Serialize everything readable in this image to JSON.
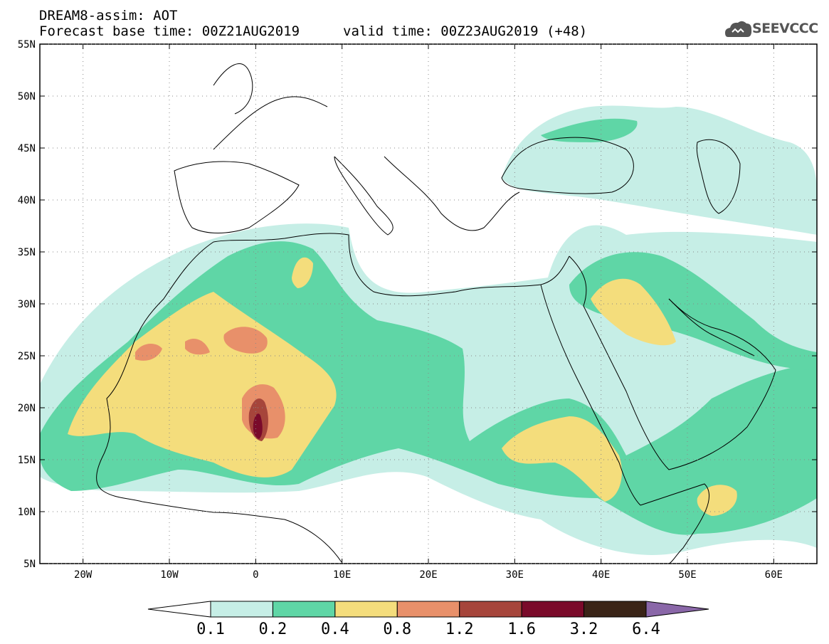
{
  "header": {
    "title_line1": "DREAM8-assim: AOT",
    "title_line2": "Forecast base time: 00Z21AUG2019",
    "valid_time": "valid time: 00Z23AUG2019 (+48)",
    "logo_text": "SEEVCCC"
  },
  "map": {
    "lon_range": [
      -25,
      65
    ],
    "lat_range": [
      5,
      55
    ],
    "lon_ticks": [
      {
        "value": -20,
        "label": "20W"
      },
      {
        "value": -10,
        "label": "10W"
      },
      {
        "value": 0,
        "label": "0"
      },
      {
        "value": 10,
        "label": "10E"
      },
      {
        "value": 20,
        "label": "20E"
      },
      {
        "value": 30,
        "label": "30E"
      },
      {
        "value": 40,
        "label": "40E"
      },
      {
        "value": 50,
        "label": "50E"
      },
      {
        "value": 60,
        "label": "60E"
      }
    ],
    "lat_ticks": [
      {
        "value": 5,
        "label": "5N"
      },
      {
        "value": 10,
        "label": "10N"
      },
      {
        "value": 15,
        "label": "15N"
      },
      {
        "value": 20,
        "label": "20N"
      },
      {
        "value": 25,
        "label": "25N"
      },
      {
        "value": 30,
        "label": "30N"
      },
      {
        "value": 35,
        "label": "35N"
      },
      {
        "value": 40,
        "label": "40N"
      },
      {
        "value": 45,
        "label": "45N"
      },
      {
        "value": 50,
        "label": "50N"
      },
      {
        "value": 55,
        "label": "55N"
      }
    ],
    "grid": "dotted"
  },
  "colorbar": {
    "labels": [
      "0.1",
      "0.2",
      "0.4",
      "0.8",
      "1.2",
      "1.6",
      "3.2",
      "6.4"
    ],
    "colors": [
      "#ffffff",
      "#c6eee6",
      "#5fd6a6",
      "#f4dd7c",
      "#e8906a",
      "#a6453b",
      "#7a0a2a",
      "#3a2417",
      "#8a67a8"
    ]
  },
  "colors": {
    "c1": "#c6eee6",
    "c2": "#5fd6a6",
    "c3": "#f4dd7c",
    "c4": "#e8906a",
    "c5": "#a6453b",
    "c6": "#7a0a2a"
  }
}
